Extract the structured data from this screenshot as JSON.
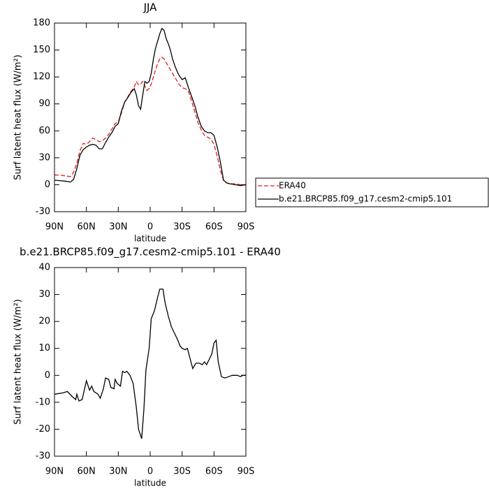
{
  "chart_data": [
    {
      "type": "line",
      "title": "JJA",
      "xlabel": "latitude",
      "ylabel": "Surf latent heat flux (W/m²)",
      "xlim": [
        90,
        -90
      ],
      "ylim": [
        -30,
        180
      ],
      "xticks": [
        {
          "value": 90,
          "label": "90N"
        },
        {
          "value": 60,
          "label": "60N"
        },
        {
          "value": 30,
          "label": "30N"
        },
        0,
        {
          "value": -30,
          "label": "30S"
        },
        {
          "value": -60,
          "label": "60S"
        },
        {
          "value": -90,
          "label": "90S"
        }
      ],
      "yticks": [
        -30,
        0,
        30,
        60,
        90,
        120,
        150,
        180
      ],
      "legend": "right",
      "x": [
        90,
        85,
        80,
        75,
        72,
        69,
        66,
        63,
        60,
        57,
        54,
        51,
        48,
        45,
        42,
        39,
        36,
        33,
        30,
        27,
        24,
        21,
        18,
        15,
        13,
        11,
        9,
        7,
        5,
        3,
        1,
        -1,
        -3,
        -5,
        -7,
        -9,
        -11,
        -13,
        -15,
        -17,
        -19,
        -21,
        -23,
        -25,
        -27,
        -30,
        -33,
        -36,
        -39,
        -42,
        -45,
        -48,
        -51,
        -54,
        -57,
        -60,
        -63,
        -66,
        -69,
        -72,
        -75,
        -80,
        -85,
        -90
      ],
      "series": [
        {
          "name": "ERA40",
          "color": "#e41a1c",
          "dashed": true,
          "values": [
            11,
            10.5,
            10,
            9,
            14,
            24,
            38,
            46,
            45,
            48,
            52,
            50,
            48,
            49,
            52,
            56,
            62,
            68,
            70,
            80,
            92,
            98,
            104,
            109,
            115,
            111,
            112,
            115,
            110,
            105,
            107,
            112,
            120,
            128,
            135,
            140,
            142,
            140,
            136,
            132,
            128,
            124,
            120,
            116,
            112,
            108,
            107,
            104,
            93,
            81,
            69,
            61,
            55,
            53,
            51,
            45,
            32,
            16,
            5,
            2,
            1,
            1,
            0,
            0
          ]
        },
        {
          "name": "b.e21.BRCP85.f09_g17.cesm2-cmip5.101",
          "color": "#000000",
          "dashed": false,
          "values": [
            5,
            4.5,
            4,
            3,
            6,
            18,
            33,
            39,
            42,
            44,
            45,
            44,
            40,
            40,
            47,
            53,
            58,
            65,
            68,
            82,
            92,
            97,
            103,
            107,
            100,
            88,
            84,
            100,
            115,
            113,
            115,
            124,
            140,
            152,
            160,
            168,
            174,
            172,
            163,
            157,
            150,
            140,
            133,
            127,
            122,
            117,
            119,
            108,
            98,
            88,
            75,
            65,
            60,
            58,
            58,
            55,
            42,
            25,
            5,
            2,
            1,
            0,
            -1,
            0
          ]
        }
      ]
    },
    {
      "type": "line",
      "title": "b.e21.BRCP85.f09_g17.cesm2-cmip5.101 - ERA40",
      "xlabel": "latitude",
      "ylabel": "Surf latent heat flux (W/m²)",
      "xlim": [
        90,
        -90
      ],
      "ylim": [
        -30,
        40
      ],
      "xticks": [
        {
          "value": 90,
          "label": "90N"
        },
        {
          "value": 60,
          "label": "60N"
        },
        {
          "value": 30,
          "label": "30N"
        },
        0,
        {
          "value": -30,
          "label": "30S"
        },
        {
          "value": -60,
          "label": "60S"
        },
        {
          "value": -90,
          "label": "90S"
        }
      ],
      "yticks": [
        -30,
        -20,
        -10,
        0,
        10,
        20,
        30,
        40
      ],
      "x": [
        90,
        82,
        78,
        73,
        70,
        69,
        67,
        64,
        60,
        57,
        55,
        53,
        49,
        47,
        44,
        42,
        39,
        37,
        34,
        33,
        31,
        28,
        26,
        24,
        22,
        19,
        16,
        13,
        11,
        8,
        6,
        4,
        1,
        -1,
        -4,
        -7,
        -9,
        -12,
        -14,
        -17,
        -20,
        -23,
        -26,
        -28,
        -30,
        -33,
        -35,
        -37,
        -40,
        -43,
        -46,
        -49,
        -51,
        -53,
        -55,
        -58,
        -60,
        -62,
        -64,
        -67,
        -70,
        -74,
        -77,
        -82,
        -85,
        -87,
        -90
      ],
      "series": [
        {
          "color": "#000000",
          "dashed": false,
          "values": [
            -7,
            -6.5,
            -6,
            -8,
            -9,
            -7,
            -9.5,
            -9,
            -2,
            -5.5,
            -4,
            -6,
            -7,
            -8.5,
            -5,
            -1,
            -1.5,
            -4.5,
            -5,
            -1.5,
            -3,
            -4,
            1.5,
            1,
            1.5,
            0,
            -3,
            -12,
            -20,
            -23.5,
            -13,
            2,
            10,
            21,
            24,
            29,
            32,
            32,
            27,
            22,
            18,
            15.5,
            13,
            11,
            10,
            9.5,
            10,
            7,
            2.5,
            4.5,
            4.5,
            4,
            5,
            4,
            5.5,
            8,
            12,
            13,
            5,
            -0.5,
            -1,
            -0.5,
            0,
            0,
            -0.5,
            0,
            0
          ]
        }
      ]
    }
  ]
}
